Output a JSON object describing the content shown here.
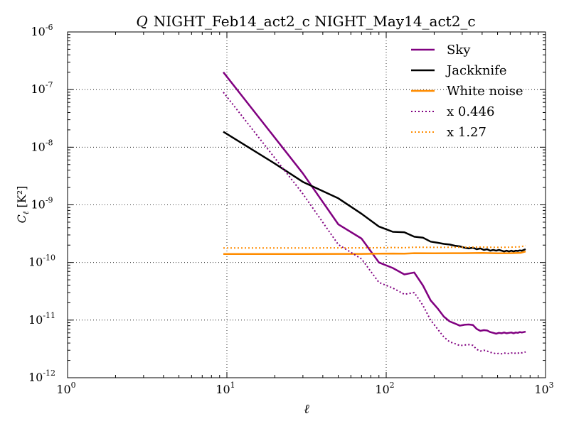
{
  "chart_data": {
    "type": "line",
    "title": "Q NIGHT_Feb14_act2_c NIGHT_May14_act2_c",
    "title_symbol": "Q",
    "title_text": "NIGHT_Feb14_act2_c NIGHT_May14_act2_c",
    "xlabel": "ℓ",
    "ylabel_main": "C",
    "ylabel_sub": "ℓ",
    "ylabel_unit": "[K²]",
    "xscale": "log",
    "yscale": "log",
    "xlim": [
      1,
      1000
    ],
    "ylim": [
      1e-12,
      1e-06
    ],
    "grid": true,
    "legend_position": "top-right",
    "x_ticks": [
      {
        "value": 1,
        "base": "10",
        "exp": "0"
      },
      {
        "value": 10,
        "base": "10",
        "exp": "1"
      },
      {
        "value": 100,
        "base": "10",
        "exp": "2"
      },
      {
        "value": 1000,
        "base": "10",
        "exp": "3"
      }
    ],
    "y_ticks": [
      {
        "value": 1e-12,
        "base": "10",
        "exp": "-12"
      },
      {
        "value": 1e-11,
        "base": "10",
        "exp": "-11"
      },
      {
        "value": 1e-10,
        "base": "10",
        "exp": "-10"
      },
      {
        "value": 1e-09,
        "base": "10",
        "exp": "-9"
      },
      {
        "value": 1e-08,
        "base": "10",
        "exp": "-8"
      },
      {
        "value": 1e-07,
        "base": "10",
        "exp": "-7"
      },
      {
        "value": 1e-06,
        "base": "10",
        "exp": "-6"
      }
    ],
    "series": [
      {
        "name": "Sky",
        "color": "#800080",
        "style": "solid",
        "x": [
          9.5,
          30,
          50,
          70,
          90,
          110,
          130,
          150,
          170,
          190,
          210,
          230,
          250,
          270,
          290,
          310,
          330,
          350,
          370,
          390,
          410,
          430,
          450,
          470,
          490,
          510,
          530,
          550,
          570,
          590,
          610,
          630,
          650,
          670,
          690,
          710,
          730,
          750
        ],
        "y": [
          2e-07,
          3.5e-09,
          4.6e-10,
          2.6e-10,
          1e-10,
          8e-11,
          6.2e-11,
          6.7e-11,
          4e-11,
          2.2e-11,
          1.6e-11,
          1.15e-11,
          9.5e-12,
          8.7e-12,
          8e-12,
          8.3e-12,
          8.4e-12,
          8.2e-12,
          7e-12,
          6.5e-12,
          6.7e-12,
          6.6e-12,
          6.2e-12,
          6e-12,
          5.8e-12,
          6e-12,
          5.9e-12,
          6.1e-12,
          5.9e-12,
          6e-12,
          6.1e-12,
          5.9e-12,
          6.1e-12,
          6e-12,
          6.2e-12,
          6.1e-12,
          6.2e-12,
          6.3e-12
        ]
      },
      {
        "name": "Jackknife",
        "color": "#000000",
        "style": "solid",
        "x": [
          9.5,
          20,
          30,
          50,
          70,
          90,
          110,
          130,
          150,
          170,
          190,
          210,
          230,
          250,
          270,
          290,
          310,
          330,
          350,
          370,
          390,
          410,
          430,
          450,
          470,
          490,
          510,
          530,
          550,
          570,
          590,
          610,
          630,
          650,
          670,
          690,
          710,
          730,
          750
        ],
        "y": [
          1.85e-08,
          5.2e-09,
          2.5e-09,
          1.3e-09,
          7e-10,
          4.2e-10,
          3.4e-10,
          3.35e-10,
          2.8e-10,
          2.7e-10,
          2.3e-10,
          2.2e-10,
          2.1e-10,
          2.05e-10,
          1.95e-10,
          1.9e-10,
          1.8e-10,
          1.75e-10,
          1.8e-10,
          1.7e-10,
          1.75e-10,
          1.65e-10,
          1.7e-10,
          1.6e-10,
          1.65e-10,
          1.6e-10,
          1.65e-10,
          1.6e-10,
          1.55e-10,
          1.6e-10,
          1.55e-10,
          1.6e-10,
          1.55e-10,
          1.6e-10,
          1.58e-10,
          1.62e-10,
          1.6e-10,
          1.65e-10,
          1.7e-10
        ]
      },
      {
        "name": "White noise",
        "color": "#ff8c00",
        "style": "solid",
        "x": [
          9.5,
          30,
          50,
          70,
          90,
          110,
          130,
          150,
          200,
          300,
          400,
          500,
          600,
          700,
          750
        ],
        "y": [
          1.4e-10,
          1.4e-10,
          1.41e-10,
          1.41e-10,
          1.42e-10,
          1.43e-10,
          1.42e-10,
          1.45e-10,
          1.44e-10,
          1.45e-10,
          1.46e-10,
          1.44e-10,
          1.45e-10,
          1.47e-10,
          1.55e-10
        ]
      },
      {
        "name": "x 0.446",
        "color": "#800080",
        "style": "dotted",
        "x": [
          9.5,
          30,
          50,
          70,
          90,
          110,
          130,
          150,
          170,
          190,
          210,
          230,
          250,
          270,
          290,
          310,
          330,
          350,
          370,
          390,
          410,
          430,
          450,
          470,
          490,
          510,
          530,
          550,
          570,
          590,
          610,
          630,
          650,
          670,
          690,
          710,
          730,
          750
        ],
        "y": [
          9e-08,
          1.55e-09,
          2.05e-10,
          1.15e-10,
          4.5e-11,
          3.6e-11,
          2.8e-11,
          3e-11,
          1.8e-11,
          1e-11,
          7e-12,
          5.1e-12,
          4.2e-12,
          3.9e-12,
          3.6e-12,
          3.7e-12,
          3.75e-12,
          3.65e-12,
          3.1e-12,
          2.9e-12,
          3e-12,
          2.9e-12,
          2.75e-12,
          2.7e-12,
          2.6e-12,
          2.65e-12,
          2.6e-12,
          2.7e-12,
          2.6e-12,
          2.65e-12,
          2.7e-12,
          2.6e-12,
          2.7e-12,
          2.65e-12,
          2.75e-12,
          2.7e-12,
          2.75e-12,
          2.8e-12
        ]
      },
      {
        "name": "x 1.27",
        "color": "#ff8c00",
        "style": "dotted",
        "x": [
          9.5,
          30,
          50,
          70,
          90,
          110,
          130,
          150,
          200,
          300,
          400,
          500,
          600,
          700,
          750
        ],
        "y": [
          1.78e-10,
          1.78e-10,
          1.79e-10,
          1.79e-10,
          1.8e-10,
          1.82e-10,
          1.8e-10,
          1.84e-10,
          1.83e-10,
          1.84e-10,
          1.85e-10,
          1.83e-10,
          1.84e-10,
          1.87e-10,
          1.97e-10
        ]
      }
    ]
  }
}
